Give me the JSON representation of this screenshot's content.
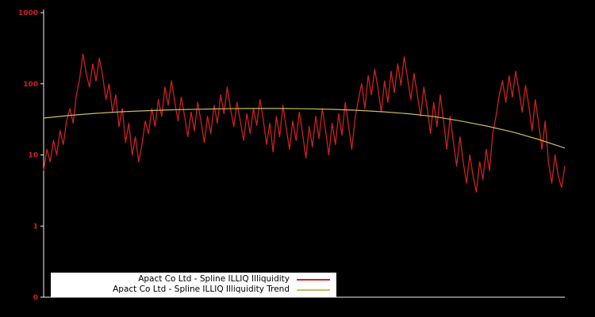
{
  "colors": {
    "background": "#000000",
    "axis": "#f2f2f2",
    "tick_label": "#cc2222",
    "legend_bg": "#ffffff",
    "legend_text": "#000000",
    "series_red": "#cc2222",
    "series_yellow": "#c8bc60"
  },
  "chart_data": {
    "type": "line",
    "title": "",
    "xlabel": "",
    "ylabel": "",
    "grid": false,
    "legend_position": "bottom-center",
    "y_axis": {
      "scale": "log",
      "range": [
        0.1,
        1000
      ],
      "ticks": [
        {
          "label": "1000",
          "value": 1000
        },
        {
          "label": "100",
          "value": 100
        },
        {
          "label": "10",
          "value": 10
        },
        {
          "label": "1",
          "value": 1
        },
        {
          "label": "0",
          "value": 0.1
        }
      ]
    },
    "series": [
      {
        "name": "Apact Co Ltd - Spline ILLIQ Illiquidity",
        "color": "#cc2222",
        "stroke_width": 1.3,
        "values": [
          6,
          12,
          8,
          16,
          10,
          22,
          14,
          30,
          45,
          28,
          70,
          120,
          260,
          140,
          90,
          190,
          110,
          230,
          130,
          60,
          100,
          40,
          70,
          25,
          45,
          15,
          28,
          10,
          18,
          8,
          14,
          30,
          20,
          45,
          25,
          60,
          35,
          90,
          50,
          110,
          55,
          30,
          65,
          35,
          18,
          40,
          22,
          55,
          30,
          15,
          35,
          20,
          50,
          28,
          70,
          38,
          90,
          45,
          25,
          55,
          30,
          16,
          38,
          20,
          45,
          26,
          60,
          32,
          14,
          28,
          11,
          35,
          18,
          50,
          24,
          12,
          30,
          16,
          40,
          20,
          9,
          25,
          13,
          35,
          17,
          45,
          22,
          10,
          28,
          14,
          38,
          19,
          55,
          26,
          12,
          32,
          60,
          100,
          45,
          130,
          70,
          160,
          85,
          40,
          110,
          55,
          150,
          75,
          190,
          95,
          240,
          120,
          60,
          140,
          70,
          35,
          90,
          45,
          20,
          55,
          25,
          70,
          30,
          12,
          35,
          15,
          7,
          18,
          8,
          4,
          10,
          5,
          3,
          8,
          4.5,
          12,
          6,
          20,
          35,
          70,
          110,
          55,
          130,
          65,
          150,
          80,
          40,
          95,
          50,
          22,
          60,
          28,
          12,
          30,
          8,
          4,
          10,
          5,
          3.5,
          7
        ]
      },
      {
        "name": "Apact Co Ltd - Spline ILLIQ Illiquidity Trend",
        "color": "#c8bc60",
        "stroke_width": 1.2,
        "values": [
          33,
          36,
          38.5,
          40.5,
          42,
          43.2,
          44,
          44.6,
          45,
          45,
          44.6,
          43.8,
          42.5,
          40.5,
          38,
          34.5,
          30,
          25.5,
          21,
          16.5,
          12.5
        ]
      }
    ]
  }
}
